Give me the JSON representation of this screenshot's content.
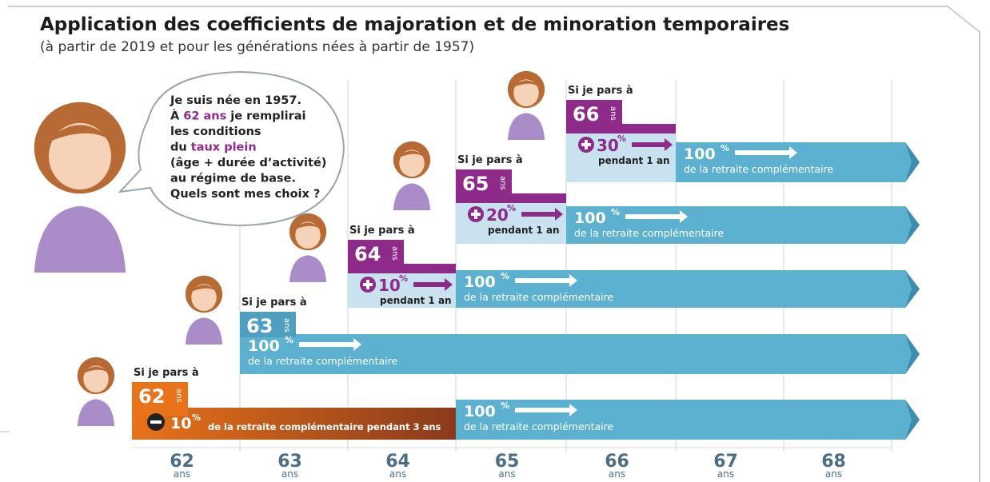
{
  "header": {
    "title": "Application des coefficients de majoration et de minoration temporaires",
    "subtitle": "(à partir de 2019 et pour les générations nées à partir de 1957)"
  },
  "bubble": {
    "lines": [
      [
        "Je suis née en 1957."
      ],
      [
        "À ",
        "62 ans",
        " je remplirai"
      ],
      [
        "les conditions"
      ],
      [
        "du ",
        "taux plein"
      ],
      [
        "(âge + durée d’activité)"
      ],
      [
        "au régime de base."
      ],
      [
        "Quels sont mes choix ?"
      ]
    ]
  },
  "options": [
    {
      "intro": "Si je pars à",
      "age": "62",
      "unit": "ans",
      "adjustment": {
        "value": "10",
        "unit": "%",
        "label": "de la retraite complémentaire pendant 3 ans"
      },
      "full": {
        "value": "100",
        "unit": "%",
        "label": "de la retraite complémentaire"
      }
    },
    {
      "intro": "Si je pars à",
      "age": "63",
      "unit": "ans",
      "full": {
        "value": "100",
        "unit": "%",
        "label": "de la retraite complémentaire"
      }
    },
    {
      "intro": "Si je pars à",
      "age": "64",
      "unit": "ans",
      "adjustment": {
        "value": "10",
        "unit": "%",
        "label": "pendant 1 an"
      },
      "full": {
        "value": "100",
        "unit": "%",
        "label": "de la retraite complémentaire"
      }
    },
    {
      "intro": "Si je pars à",
      "age": "65",
      "unit": "ans",
      "adjustment": {
        "value": "20",
        "unit": "%",
        "label": "pendant 1 an"
      },
      "full": {
        "value": "100",
        "unit": "%",
        "label": "de la retraite complémentaire"
      }
    },
    {
      "intro": "Si je pars à",
      "age": "66",
      "unit": "ans",
      "adjustment": {
        "value": "30",
        "unit": "%",
        "label": "pendant 1 an"
      },
      "full": {
        "value": "100",
        "unit": "%",
        "label": "de la retraite complémentaire"
      }
    }
  ],
  "axis": {
    "ages": [
      "62",
      "63",
      "64",
      "65",
      "66",
      "67",
      "68"
    ],
    "unit": "ans"
  }
}
